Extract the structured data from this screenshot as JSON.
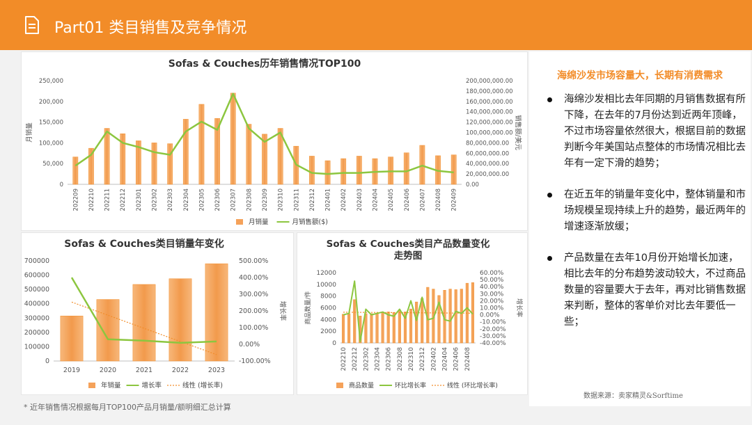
{
  "header": {
    "title": "Part01 类目销售及竞争情况"
  },
  "right_panel": {
    "title": "海绵沙发市场容量大，长期有消费需求",
    "bullets": [
      "海绵沙发相比去年同期的月销售数据有所下降，在去年的7月份达到近两年顶峰，不过市场容量依然很大，根据目前的数据判断今年美国站点整体的市场情况相比去年有一定下滑的趋势；",
      "在近五年的销量年变化中，整体销量和市场规模呈现持续上升的趋势，最近两年的增速逐渐放缓；",
      "产品数量在去年10月份开始增长加速，相比去年的分布趋势波动较大，不过商品数量的容量要大于去年，再对比销售数据来判断，整体的客单价对比去年要低一些；"
    ],
    "source": "数据来源：卖家精灵&Sorftime"
  },
  "footnote": "* 近年销售情况根据每月TOP100产品月销量/额明细汇总计算",
  "colors": {
    "accent": "#f28c28",
    "bar": "#f5a25a",
    "line": "#8cc63f",
    "trend": "#f28c28"
  },
  "icons": {
    "header": "document-icon"
  },
  "chart_data": [
    {
      "type": "bar",
      "title": "Sofas & Couches历年销售情况TOP100",
      "categories": [
        "202209",
        "202210",
        "202211",
        "202212",
        "202301",
        "202302",
        "202303",
        "202304",
        "202305",
        "202306",
        "202307",
        "202308",
        "202309",
        "202310",
        "202311",
        "202312",
        "202401",
        "202402",
        "202403",
        "202404",
        "202405",
        "202406",
        "202407",
        "202408",
        "202409"
      ],
      "series": [
        {
          "name": "月销量",
          "type": "bar",
          "axis": "left",
          "values": [
            66000,
            87000,
            135000,
            122000,
            105000,
            100000,
            98000,
            157000,
            193000,
            159000,
            220000,
            145000,
            121000,
            135000,
            92000,
            68000,
            57000,
            62000,
            68000,
            62000,
            66000,
            76000,
            94000,
            69000,
            71000
          ]
        },
        {
          "name": "月销售额($)",
          "type": "line",
          "axis": "right",
          "values": [
            36000000,
            57000000,
            102000000,
            80000000,
            72000000,
            62000000,
            57000000,
            102000000,
            121000000,
            105000000,
            175000000,
            108000000,
            82000000,
            100000000,
            38000000,
            22000000,
            20000000,
            22000000,
            22000000,
            24000000,
            25000000,
            25000000,
            36000000,
            26000000,
            23000000
          ]
        }
      ],
      "ylabel": "月销量",
      "y2label": "销售额/美元",
      "yticks": [
        "0",
        "50,000",
        "100,000",
        "150,000",
        "200,000",
        "250,000"
      ],
      "y2ticks": [
        "0.00",
        "20,000,000.00",
        "40,000,000.00",
        "60,000,000.00",
        "80,000,000.00",
        "100,000,000.00",
        "120,000,000.00",
        "140,000,000.00",
        "160,000,000.00",
        "180,000,000.00",
        "200,000,000.00"
      ],
      "ylim": [
        0,
        250000
      ],
      "y2lim": [
        0,
        200000000
      ],
      "legend": "bottom"
    },
    {
      "type": "bar",
      "title": "Sofas & Couches类目销量年变化",
      "categories": [
        "2019",
        "2020",
        "2021",
        "2022",
        "2023"
      ],
      "series": [
        {
          "name": "年销量",
          "type": "bar",
          "axis": "left",
          "values": [
            315000,
            430000,
            535000,
            575000,
            680000
          ]
        },
        {
          "name": "增长率",
          "type": "line",
          "axis": "right",
          "values": [
            4.0,
            0.3,
            0.22,
            0.09,
            0.17
          ]
        },
        {
          "name": "线性 (增长率)",
          "type": "trendline",
          "axis": "right"
        }
      ],
      "y2label": "增长率",
      "yticks": [
        "0",
        "100000",
        "200000",
        "300000",
        "400000",
        "500000",
        "600000",
        "700000"
      ],
      "y2ticks": [
        "-100.00%",
        "0.00%",
        "100.00%",
        "200.00%",
        "300.00%",
        "400.00%",
        "500.00%"
      ],
      "ylim": [
        0,
        700000
      ],
      "y2lim": [
        -1,
        5
      ],
      "legend": "bottom"
    },
    {
      "type": "bar",
      "title": "Sofas & Couches类目产品数量变化走势图",
      "categories": [
        "202210",
        "202211",
        "202212",
        "202301",
        "202302",
        "202303",
        "202304",
        "202305",
        "202306",
        "202307",
        "202308",
        "202309",
        "202310",
        "202311",
        "202312",
        "202401",
        "202402",
        "202403",
        "202404",
        "202405",
        "202406",
        "202407",
        "202408",
        "202409"
      ],
      "xticklabels": [
        "202210",
        "202212",
        "202302",
        "202304",
        "202306",
        "202308",
        "202310",
        "202312",
        "202402",
        "202404",
        "202406",
        "202408"
      ],
      "series": [
        {
          "name": "商品数量",
          "type": "bar",
          "axis": "left",
          "values": [
            4900,
            5000,
            7400,
            4600,
            5000,
            5000,
            5100,
            5300,
            5300,
            5200,
            5600,
            5300,
            5800,
            7000,
            7600,
            9500,
            9200,
            8100,
            9000,
            9200,
            9100,
            9200,
            10200,
            10300
          ]
        },
        {
          "name": "环比增长率",
          "type": "line",
          "axis": "right",
          "values": [
            0.0,
            0.02,
            0.48,
            -0.38,
            0.08,
            0.0,
            0.02,
            0.04,
            0.0,
            -0.02,
            0.08,
            -0.05,
            0.2,
            -0.08,
            0.25,
            -0.07,
            -0.05,
            0.18,
            -0.07,
            -0.09,
            0.05,
            0.02,
            0.1,
            0.01
          ]
        },
        {
          "name": "线性 (环比增长率)",
          "type": "trendline",
          "axis": "right"
        }
      ],
      "ylabel": "商品数量/件",
      "y2label": "增长率",
      "yticks": [
        "0",
        "2000",
        "4000",
        "6000",
        "8000",
        "10000",
        "12000"
      ],
      "y2ticks": [
        "-40.00%",
        "-30.00%",
        "-20.00%",
        "-10.00%",
        "0.00%",
        "10.00%",
        "20.00%",
        "30.00%",
        "40.00%",
        "50.00%",
        "60.00%"
      ],
      "ylim": [
        0,
        12000
      ],
      "y2lim": [
        -0.4,
        0.6
      ],
      "legend": "bottom"
    }
  ]
}
